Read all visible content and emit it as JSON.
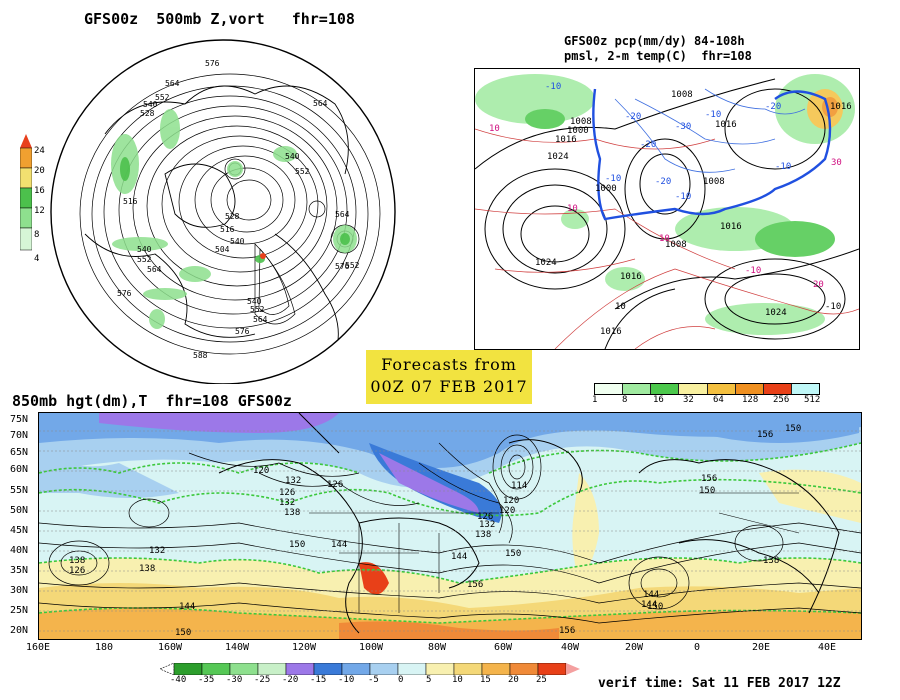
{
  "panels": {
    "top_left": {
      "title": "GFS00z  500mb Z,vort   fhr=108",
      "colorbar_values": [
        "24",
        "20",
        "16",
        "12",
        "8",
        "4"
      ],
      "colorbar_colors": [
        "#e8401c",
        "#f0a030",
        "#f2e070",
        "#4cc04c",
        "#8ee08e",
        "#d6f6d6"
      ],
      "contour_labels": [
        "576",
        "564",
        "552",
        "540",
        "528",
        "516",
        "540",
        "552",
        "564",
        "576",
        "588",
        "552",
        "540",
        "564",
        "576",
        "528",
        "516",
        "504",
        "540",
        "552",
        "564",
        "576",
        "540",
        "552"
      ]
    },
    "top_right": {
      "title_line1": "GFS00z pcp(mm/dy) 84-108h",
      "title_line2": "pmsl, 2-m temp(C)  fhr=108",
      "colorbar_values": [
        "1",
        "8",
        "16",
        "32",
        "64",
        "128",
        "256",
        "512"
      ],
      "colorbar_colors": [
        "#f0fff0",
        "#a0eaa0",
        "#4cc84c",
        "#f8f0a0",
        "#f4c040",
        "#f09020",
        "#e84018",
        "#c0f8f8"
      ],
      "pressure_labels": [
        "1008",
        "1000",
        "1016",
        "1024",
        "1016",
        "1000",
        "1008",
        "1016",
        "1024",
        "1008",
        "1016",
        "1024",
        "1016",
        "1008",
        "1016"
      ],
      "temp_labels": [
        "-10",
        "-20",
        "-30",
        "-10",
        "-20",
        "-10",
        "-20",
        "-10",
        "10",
        "10",
        "10",
        "-10",
        "30",
        "20",
        "10",
        "-10"
      ]
    },
    "banner": {
      "line1": "Forecasts from",
      "line2": "00Z 07 FEB 2017"
    },
    "bottom": {
      "title": "850mb hgt(dm),T  fhr=108 GFS00z",
      "lat_labels": [
        "75N",
        "70N",
        "65N",
        "60N",
        "55N",
        "50N",
        "45N",
        "40N",
        "35N",
        "30N",
        "25N",
        "20N"
      ],
      "lon_labels": [
        "160E",
        "180",
        "160W",
        "140W",
        "120W",
        "100W",
        "80W",
        "60W",
        "40W",
        "20W",
        "0",
        "20E",
        "40E"
      ],
      "height_labels": [
        "120",
        "132",
        "126",
        "132",
        "138",
        "132",
        "126",
        "120",
        "114",
        "120",
        "126",
        "132",
        "138",
        "144",
        "150",
        "156",
        "144",
        "150",
        "138",
        "144",
        "150",
        "156",
        "144",
        "150",
        "132",
        "138",
        "144",
        "150",
        "156",
        "144",
        "150",
        "156"
      ],
      "colorbar_values": [
        "-40",
        "-35",
        "-30",
        "-25",
        "-20",
        "-15",
        "-10",
        "-5",
        "0",
        "5",
        "10",
        "15",
        "20",
        "25"
      ],
      "colorbar_colors": [
        "#2c9e2c",
        "#56c856",
        "#8ee08e",
        "#c8f0c8",
        "#9c78e8",
        "#3a7ad8",
        "#72a8e8",
        "#a8d0f0",
        "#d8f4f4",
        "#f8f0b0",
        "#f4d878",
        "#f4b44c",
        "#f08a38",
        "#e84018"
      ],
      "verif_time": "verif time: Sat 11 FEB 2017 12Z"
    }
  }
}
